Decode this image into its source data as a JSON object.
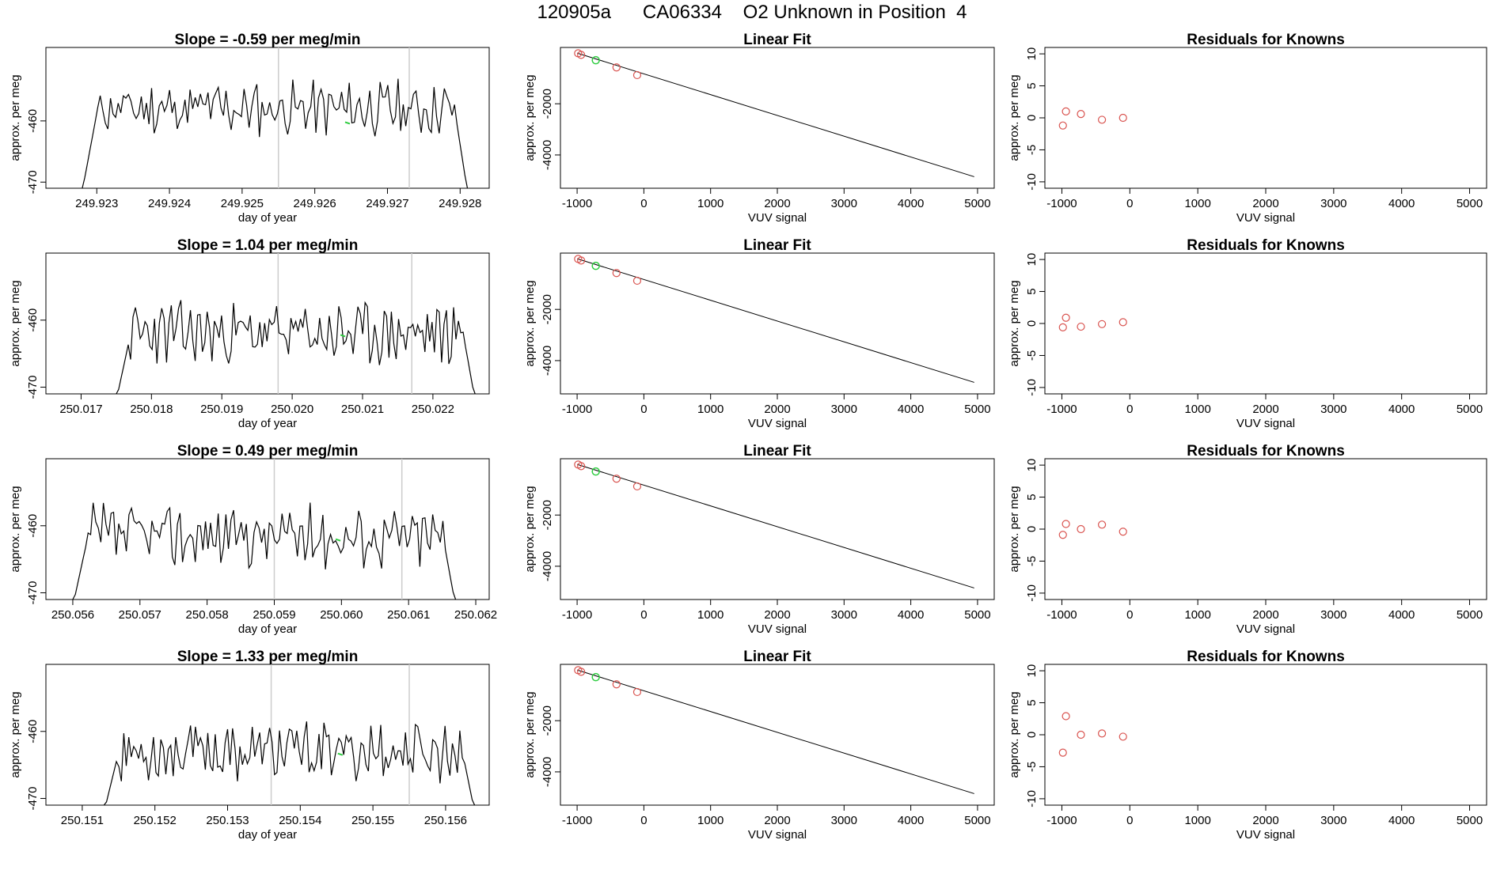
{
  "header": {
    "title": "120905a      CA06334    O2 Unknown in Position  4"
  },
  "colors": {
    "known": "#d9534f",
    "unknown": "#2ecc40",
    "line": "#000000",
    "marker_line": "#cccccc"
  },
  "chart_data": [
    {
      "type": "line",
      "title": "Slope =  -0.59  per meg/min",
      "xlabel": "day of year",
      "ylabel": "approx. per meg",
      "xticks": [
        "249.923",
        "249.924",
        "249.925",
        "249.926",
        "249.927",
        "249.928"
      ],
      "yticks": [
        "-460",
        "-470"
      ],
      "xlim": [
        249.9223,
        249.9284
      ],
      "ylim": [
        -471,
        -448
      ],
      "vlines": [
        249.9255,
        249.9273
      ],
      "highlight_x": 249.92645,
      "highlight_y": -460.2,
      "trace": {
        "x0": 249.9228,
        "x1": 249.9281,
        "start_y": -471.5,
        "end_y": -471.5,
        "base": -458,
        "amp": 2.3,
        "seed": 11
      }
    },
    {
      "type": "scatter",
      "title": "Linear Fit",
      "xlabel": "VUV signal",
      "ylabel": "approx. per meg",
      "xticks": [
        "-1000",
        "0",
        "1000",
        "2000",
        "3000",
        "4000",
        "5000"
      ],
      "yticks": [
        "-2000",
        "-4000"
      ],
      "xlim": [
        -1250,
        5250
      ],
      "ylim": [
        -5300,
        200
      ],
      "known_points": [
        [
          -985,
          -28
        ],
        [
          -940,
          -90
        ],
        [
          -410,
          -580
        ],
        [
          -100,
          -880
        ]
      ],
      "unknown_points": [
        [
          -720,
          -300
        ]
      ],
      "fit_line": [
        [
          -1000,
          -20
        ],
        [
          4950,
          -4850
        ]
      ]
    },
    {
      "type": "scatter",
      "title": "Residuals for Knowns",
      "xlabel": "VUV signal",
      "ylabel": "approx. per meg",
      "xticks": [
        "-1000",
        "0",
        "1000",
        "2000",
        "3000",
        "4000",
        "5000"
      ],
      "yticks": [
        "10",
        "5",
        "0",
        "-5",
        "-10"
      ],
      "xlim": [
        -1250,
        5250
      ],
      "ylim": [
        -11,
        11
      ],
      "known_points": [
        [
          -985,
          -1.2
        ],
        [
          -940,
          1.0
        ],
        [
          -720,
          0.6
        ],
        [
          -410,
          -0.3
        ],
        [
          -100,
          0.0
        ]
      ]
    },
    {
      "type": "line",
      "title": "Slope =  1.04  per meg/min",
      "xlabel": "day of year",
      "ylabel": "approx. per meg",
      "xticks": [
        "250.017",
        "250.018",
        "250.019",
        "250.020",
        "250.021",
        "250.022"
      ],
      "yticks": [
        "-460",
        "-470"
      ],
      "xlim": [
        250.0165,
        250.0228
      ],
      "ylim": [
        -471,
        -450
      ],
      "vlines": [
        250.0198,
        250.0217
      ],
      "highlight_x": 250.02072,
      "highlight_y": -462.2,
      "trace": {
        "x0": 250.0175,
        "x1": 250.0226,
        "start_y": -472,
        "end_y": -472,
        "base": -462,
        "amp": 2.4,
        "seed": 23
      }
    },
    {
      "type": "scatter",
      "title": "Linear Fit",
      "xlabel": "VUV signal",
      "ylabel": "approx. per meg",
      "xticks": [
        "-1000",
        "0",
        "1000",
        "2000",
        "3000",
        "4000",
        "5000"
      ],
      "yticks": [
        "-2000",
        "-4000"
      ],
      "xlim": [
        -1250,
        5250
      ],
      "ylim": [
        -5300,
        200
      ],
      "known_points": [
        [
          -985,
          -28
        ],
        [
          -940,
          -90
        ],
        [
          -410,
          -580
        ],
        [
          -100,
          -880
        ]
      ],
      "unknown_points": [
        [
          -720,
          -300
        ]
      ],
      "fit_line": [
        [
          -1000,
          -20
        ],
        [
          4950,
          -4850
        ]
      ]
    },
    {
      "type": "scatter",
      "title": "Residuals for Knowns",
      "xlabel": "VUV signal",
      "ylabel": "approx. per meg",
      "xticks": [
        "-1000",
        "0",
        "1000",
        "2000",
        "3000",
        "4000",
        "5000"
      ],
      "yticks": [
        "10",
        "5",
        "0",
        "-5",
        "-10"
      ],
      "xlim": [
        -1250,
        5250
      ],
      "ylim": [
        -11,
        11
      ],
      "known_points": [
        [
          -985,
          -0.6
        ],
        [
          -940,
          0.9
        ],
        [
          -720,
          -0.5
        ],
        [
          -410,
          -0.1
        ],
        [
          -100,
          0.2
        ]
      ]
    },
    {
      "type": "line",
      "title": "Slope =  0.49  per meg/min",
      "xlabel": "day of year",
      "ylabel": "approx. per meg",
      "xticks": [
        "250.056",
        "250.057",
        "250.058",
        "250.059",
        "250.060",
        "250.061",
        "250.062"
      ],
      "yticks": [
        "-460",
        "-470"
      ],
      "xlim": [
        250.0556,
        250.0622
      ],
      "ylim": [
        -471,
        -450
      ],
      "vlines": [
        250.059,
        250.0609
      ],
      "highlight_x": 250.05995,
      "highlight_y": -462.0,
      "trace": {
        "x0": 250.056,
        "x1": 250.0617,
        "start_y": -472,
        "end_y": -472,
        "base": -461.5,
        "amp": 2.4,
        "seed": 37
      }
    },
    {
      "type": "scatter",
      "title": "Linear Fit",
      "xlabel": "VUV signal",
      "ylabel": "approx. per meg",
      "xticks": [
        "-1000",
        "0",
        "1000",
        "2000",
        "3000",
        "4000",
        "5000"
      ],
      "yticks": [
        "-2000",
        "-4000"
      ],
      "xlim": [
        -1250,
        5250
      ],
      "ylim": [
        -5300,
        200
      ],
      "known_points": [
        [
          -985,
          -28
        ],
        [
          -940,
          -90
        ],
        [
          -410,
          -580
        ],
        [
          -100,
          -880
        ]
      ],
      "unknown_points": [
        [
          -720,
          -300
        ]
      ],
      "fit_line": [
        [
          -1000,
          -20
        ],
        [
          4950,
          -4850
        ]
      ]
    },
    {
      "type": "scatter",
      "title": "Residuals for Knowns",
      "xlabel": "VUV signal",
      "ylabel": "approx. per meg",
      "xticks": [
        "-1000",
        "0",
        "1000",
        "2000",
        "3000",
        "4000",
        "5000"
      ],
      "yticks": [
        "10",
        "5",
        "0",
        "-5",
        "-10"
      ],
      "xlim": [
        -1250,
        5250
      ],
      "ylim": [
        -11,
        11
      ],
      "known_points": [
        [
          -985,
          -0.9
        ],
        [
          -940,
          0.8
        ],
        [
          -720,
          0.0
        ],
        [
          -410,
          0.7
        ],
        [
          -100,
          -0.4
        ]
      ]
    },
    {
      "type": "line",
      "title": "Slope =  1.33  per meg/min",
      "xlabel": "day of year",
      "ylabel": "approx. per meg",
      "xticks": [
        "250.151",
        "250.152",
        "250.153",
        "250.154",
        "250.155",
        "250.156"
      ],
      "yticks": [
        "-460",
        "-470"
      ],
      "xlim": [
        250.1505,
        250.1566
      ],
      "ylim": [
        -471,
        -450
      ],
      "vlines": [
        250.1536,
        250.1555
      ],
      "highlight_x": 250.15455,
      "highlight_y": -463.3,
      "trace": {
        "x0": 250.1513,
        "x1": 250.1564,
        "start_y": -472,
        "end_y": -472,
        "base": -463,
        "amp": 2.3,
        "seed": 53
      }
    },
    {
      "type": "scatter",
      "title": "Linear Fit",
      "xlabel": "VUV signal",
      "ylabel": "approx. per meg",
      "xticks": [
        "-1000",
        "0",
        "1000",
        "2000",
        "3000",
        "4000",
        "5000"
      ],
      "yticks": [
        "-2000",
        "-4000"
      ],
      "xlim": [
        -1250,
        5250
      ],
      "ylim": [
        -5300,
        200
      ],
      "known_points": [
        [
          -985,
          -28
        ],
        [
          -940,
          -90
        ],
        [
          -410,
          -580
        ],
        [
          -100,
          -880
        ]
      ],
      "unknown_points": [
        [
          -720,
          -300
        ]
      ],
      "fit_line": [
        [
          -1000,
          -20
        ],
        [
          4950,
          -4850
        ]
      ]
    },
    {
      "type": "scatter",
      "title": "Residuals for Knowns",
      "xlabel": "VUV signal",
      "ylabel": "approx. per meg",
      "xticks": [
        "-1000",
        "0",
        "1000",
        "2000",
        "3000",
        "4000",
        "5000"
      ],
      "yticks": [
        "10",
        "5",
        "0",
        "-5",
        "-10"
      ],
      "xlim": [
        -1250,
        5250
      ],
      "ylim": [
        -11,
        11
      ],
      "known_points": [
        [
          -985,
          -2.8
        ],
        [
          -940,
          2.9
        ],
        [
          -720,
          0.0
        ],
        [
          -410,
          0.2
        ],
        [
          -100,
          -0.3
        ]
      ]
    }
  ]
}
